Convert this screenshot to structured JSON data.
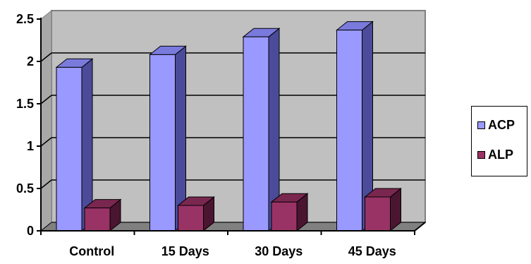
{
  "chart_data": {
    "type": "bar",
    "categories": [
      "Control",
      "15 Days",
      "30 Days",
      "45 Days"
    ],
    "series": [
      {
        "name": "ACP",
        "values": [
          1.93,
          2.08,
          2.29,
          2.37
        ],
        "color": "#9999ff",
        "side_color": "#4b4b9a",
        "top_color": "#7a7add"
      },
      {
        "name": "ALP",
        "values": [
          0.27,
          0.3,
          0.34,
          0.4
        ],
        "color": "#993366",
        "side_color": "#4a1530",
        "top_color": "#7a2750"
      }
    ],
    "ylim": [
      0,
      2.5
    ],
    "yticks": [
      "0",
      "0.5",
      "1",
      "1.5",
      "2",
      "2.5"
    ],
    "grid": true,
    "legend_position": "right",
    "wall_color": "#c0c0c0",
    "floor_color": "#808080"
  }
}
